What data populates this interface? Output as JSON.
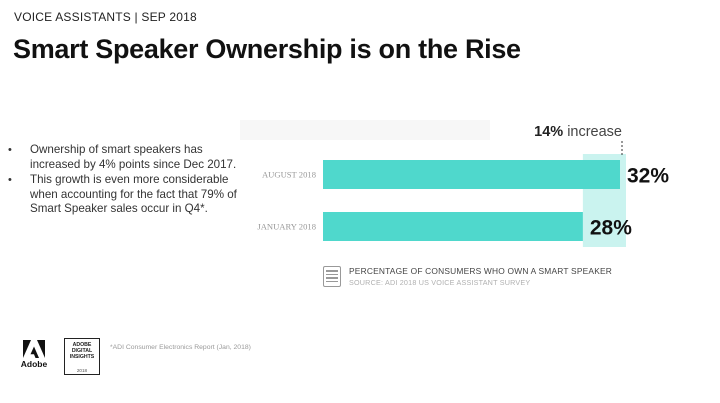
{
  "header": {
    "kicker": "VOICE ASSISTANTS | SEP 2018",
    "title": "Smart Speaker Ownership is on the Rise"
  },
  "bullets": [
    "Ownership of smart speakers has increased by 4% points since Dec 2017.",
    "This growth is even more considerable when accounting for the fact that 79% of Smart Speaker sales occur in Q4*."
  ],
  "chart_data": {
    "type": "bar",
    "orientation": "horizontal",
    "categories": [
      "AUGUST 2018",
      "JANUARY 2018"
    ],
    "values": [
      32,
      28
    ],
    "value_labels": [
      "32%",
      "28%"
    ],
    "annotation": {
      "bold": "14%",
      "text": "increase"
    },
    "xlim": [
      0,
      32
    ],
    "bar_color": "#4fd8cc",
    "increase_color": "#9fe9e2",
    "legend": {
      "title": "PERCENTAGE OF CONSUMERS WHO OWN A SMART SPEAKER",
      "source": "SOURCE: ADI 2018 US VOICE ASSISTANT SURVEY"
    }
  },
  "footnote": "*ADI Consumer Electronics Report (Jan, 2018)",
  "logos": {
    "adobe": "Adobe",
    "adi_lines": [
      "ADOBE",
      "DIGITAL",
      "INSIGHTS"
    ],
    "adi_year": "2018"
  }
}
